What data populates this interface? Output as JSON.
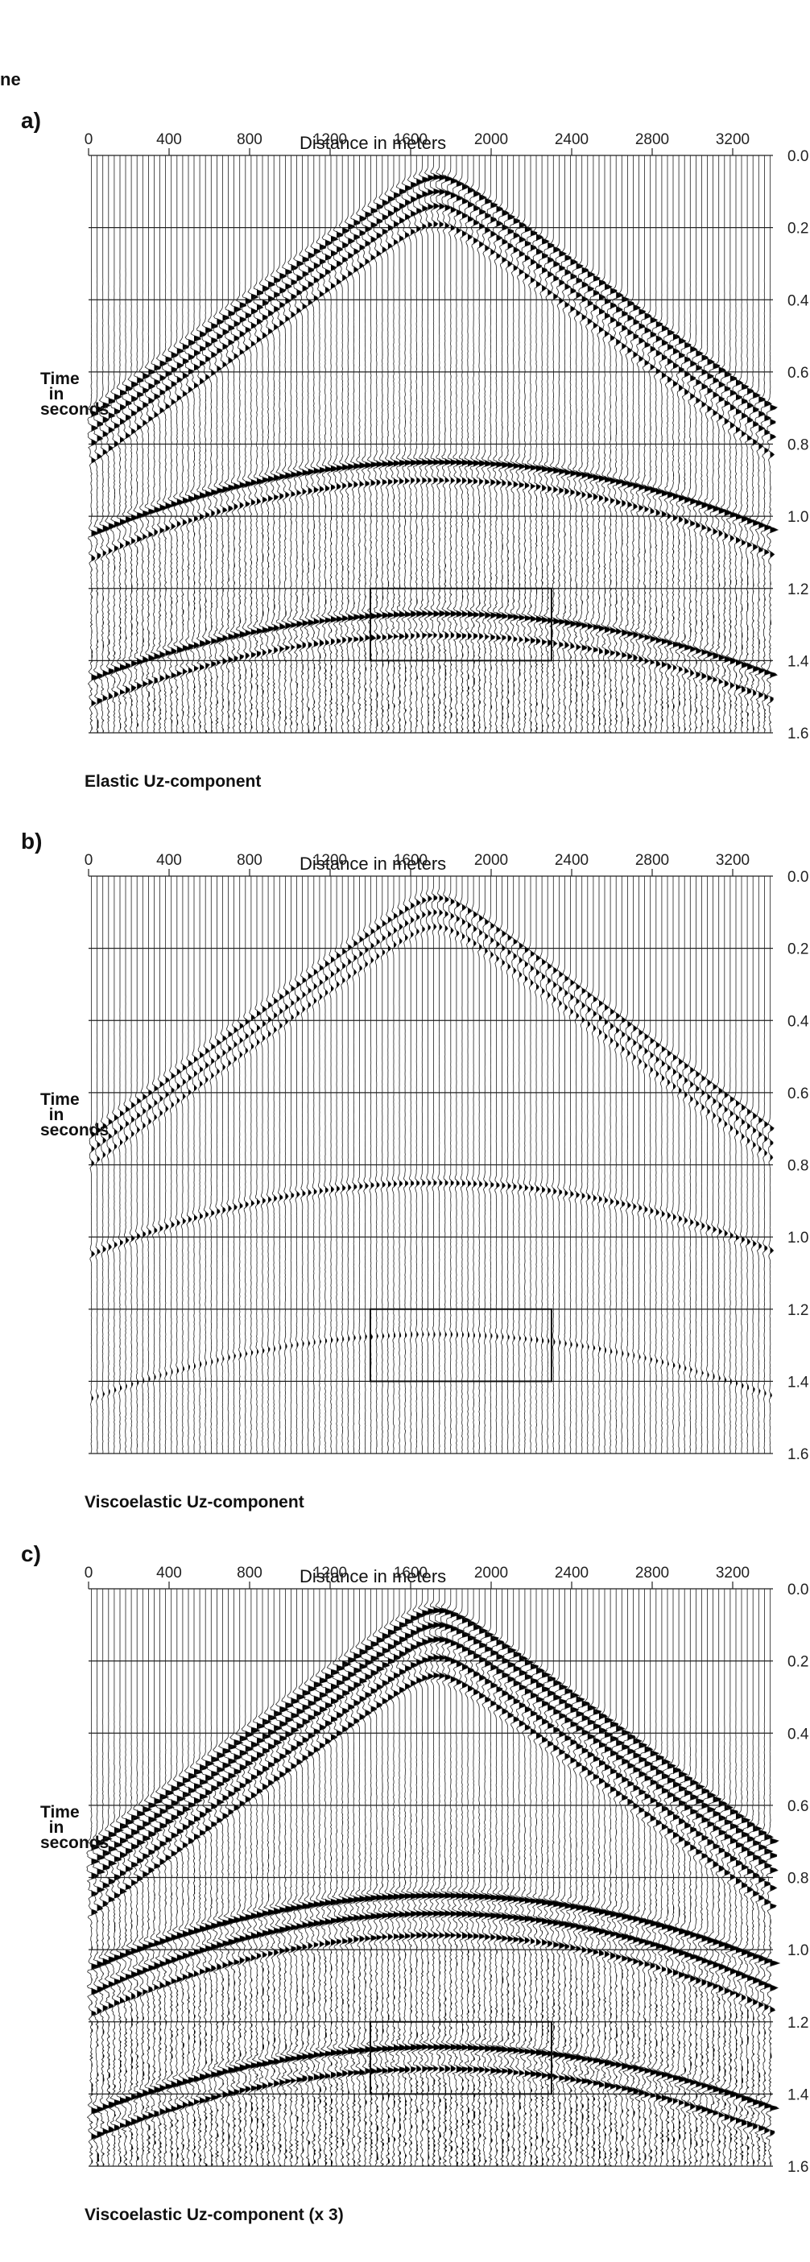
{
  "fragment_text": "ne",
  "chart_data": [
    {
      "type": "wiggle",
      "panel_label": "a)",
      "xlabel": "Distance in meters",
      "ylabel": "Time in seconds",
      "caption": "Elastic Uz-component",
      "x_ticks": [
        0,
        400,
        800,
        1200,
        1600,
        2000,
        2400,
        2800,
        3200
      ],
      "y_ticks": [
        "0.0",
        "0.2",
        "0.4",
        "0.6",
        "0.8",
        "1.0",
        "1.2",
        "1.4",
        "1.6"
      ],
      "xlim": [
        0,
        3400
      ],
      "ylim": [
        0,
        1.6
      ],
      "traces": 120,
      "amplitude_scale": 1.0,
      "highlight_box": {
        "x": [
          1400,
          2300
        ],
        "t": [
          1.2,
          1.4
        ]
      },
      "events": [
        {
          "kind": "hyperbola",
          "apex_x": 1720,
          "apex_t": 0.06,
          "edge_t": 0.72,
          "strength": 1.0
        },
        {
          "kind": "hyperbola",
          "apex_x": 1720,
          "apex_t": 0.1,
          "edge_t": 0.76,
          "strength": 0.9
        },
        {
          "kind": "hyperbola",
          "apex_x": 1720,
          "apex_t": 0.14,
          "edge_t": 0.8,
          "strength": 0.8
        },
        {
          "kind": "hyperbola",
          "apex_x": 1720,
          "apex_t": 0.19,
          "edge_t": 0.85,
          "strength": 0.6
        },
        {
          "kind": "reflection",
          "apex_x": 1720,
          "apex_t": 0.85,
          "edge_t": 1.05,
          "strength": 1.0
        },
        {
          "kind": "reflection",
          "apex_x": 1720,
          "apex_t": 0.9,
          "edge_t": 1.12,
          "strength": 0.6
        },
        {
          "kind": "reflection",
          "apex_x": 1720,
          "apex_t": 1.27,
          "edge_t": 1.45,
          "strength": 0.9
        },
        {
          "kind": "reflection",
          "apex_x": 1720,
          "apex_t": 1.33,
          "edge_t": 1.52,
          "strength": 0.6
        }
      ]
    },
    {
      "type": "wiggle",
      "panel_label": "b)",
      "xlabel": "Distance in meters",
      "ylabel": "Time in seconds",
      "caption": "Viscoelastic Uz-component",
      "x_ticks": [
        0,
        400,
        800,
        1200,
        1600,
        2000,
        2400,
        2800,
        3200
      ],
      "y_ticks": [
        "0.0",
        "0.2",
        "0.4",
        "0.6",
        "0.8",
        "1.0",
        "1.2",
        "1.4",
        "1.6"
      ],
      "xlim": [
        0,
        3400
      ],
      "ylim": [
        0,
        1.6
      ],
      "traces": 120,
      "amplitude_scale": 0.55,
      "highlight_box": {
        "x": [
          1400,
          2300
        ],
        "t": [
          1.2,
          1.4
        ]
      },
      "events": [
        {
          "kind": "hyperbola",
          "apex_x": 1720,
          "apex_t": 0.06,
          "edge_t": 0.72,
          "strength": 1.0
        },
        {
          "kind": "hyperbola",
          "apex_x": 1720,
          "apex_t": 0.1,
          "edge_t": 0.76,
          "strength": 0.85
        },
        {
          "kind": "hyperbola",
          "apex_x": 1720,
          "apex_t": 0.14,
          "edge_t": 0.8,
          "strength": 0.7
        },
        {
          "kind": "reflection",
          "apex_x": 1720,
          "apex_t": 0.85,
          "edge_t": 1.05,
          "strength": 0.8
        },
        {
          "kind": "reflection",
          "apex_x": 1720,
          "apex_t": 1.27,
          "edge_t": 1.45,
          "strength": 0.4
        }
      ]
    },
    {
      "type": "wiggle",
      "panel_label": "c)",
      "xlabel": "Distance in meters",
      "ylabel": "Time in seconds",
      "caption": "Viscoelastic Uz-component (x 3)",
      "x_ticks": [
        0,
        400,
        800,
        1200,
        1600,
        2000,
        2400,
        2800,
        3200
      ],
      "y_ticks": [
        "0.0",
        "0.2",
        "0.4",
        "0.6",
        "0.8",
        "1.0",
        "1.2",
        "1.4",
        "1.6"
      ],
      "xlim": [
        0,
        3400
      ],
      "ylim": [
        0,
        1.6
      ],
      "traces": 120,
      "amplitude_scale": 1.2,
      "highlight_box": {
        "x": [
          1400,
          2300
        ],
        "t": [
          1.2,
          1.4
        ]
      },
      "events": [
        {
          "kind": "hyperbola",
          "apex_x": 1720,
          "apex_t": 0.06,
          "edge_t": 0.72,
          "strength": 1.0
        },
        {
          "kind": "hyperbola",
          "apex_x": 1720,
          "apex_t": 0.1,
          "edge_t": 0.76,
          "strength": 0.95
        },
        {
          "kind": "hyperbola",
          "apex_x": 1720,
          "apex_t": 0.14,
          "edge_t": 0.8,
          "strength": 0.9
        },
        {
          "kind": "hyperbola",
          "apex_x": 1720,
          "apex_t": 0.19,
          "edge_t": 0.85,
          "strength": 0.8
        },
        {
          "kind": "hyperbola",
          "apex_x": 1720,
          "apex_t": 0.24,
          "edge_t": 0.9,
          "strength": 0.7
        },
        {
          "kind": "reflection",
          "apex_x": 1720,
          "apex_t": 0.85,
          "edge_t": 1.05,
          "strength": 1.0
        },
        {
          "kind": "reflection",
          "apex_x": 1720,
          "apex_t": 0.9,
          "edge_t": 1.12,
          "strength": 0.9
        },
        {
          "kind": "reflection",
          "apex_x": 1720,
          "apex_t": 0.96,
          "edge_t": 1.18,
          "strength": 0.6
        },
        {
          "kind": "reflection",
          "apex_x": 1720,
          "apex_t": 1.27,
          "edge_t": 1.45,
          "strength": 0.9
        },
        {
          "kind": "reflection",
          "apex_x": 1720,
          "apex_t": 1.33,
          "edge_t": 1.52,
          "strength": 0.7
        }
      ]
    }
  ]
}
